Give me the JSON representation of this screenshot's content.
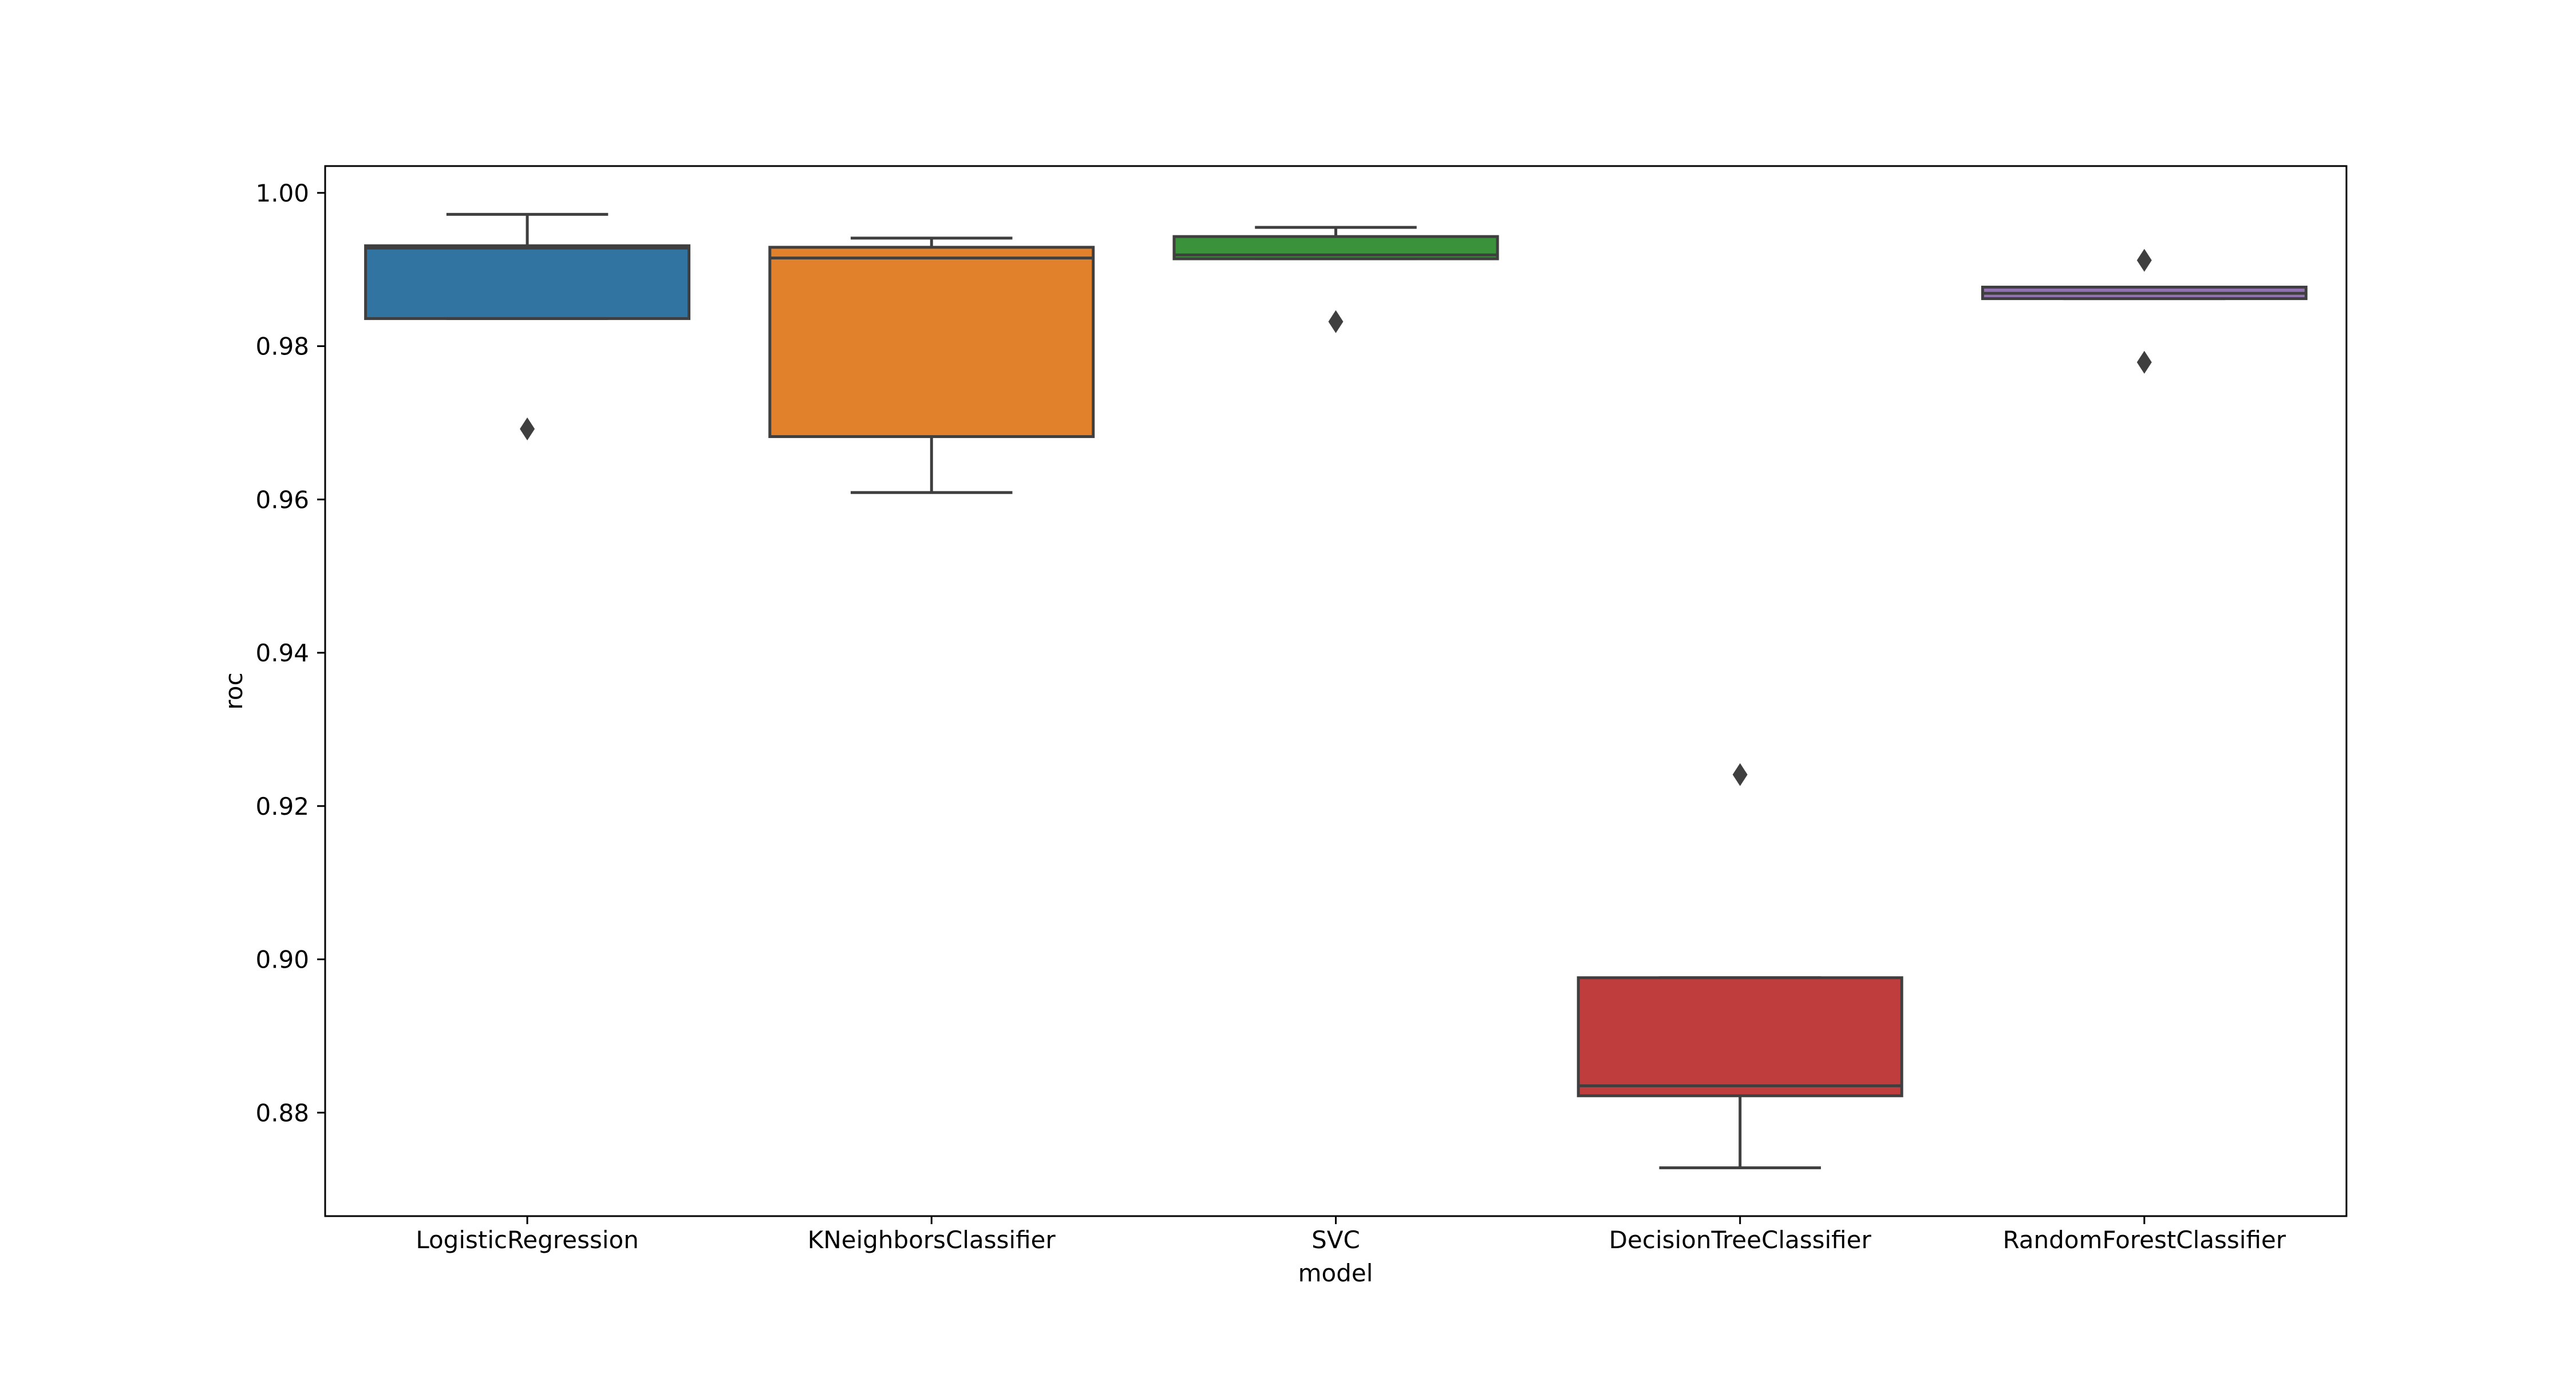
{
  "chart_data": {
    "type": "box",
    "xlabel": "model",
    "ylabel": "roc",
    "ylim": [
      0.8665,
      1.0035
    ],
    "yticks": [
      0.88,
      0.9,
      0.92,
      0.94,
      0.96,
      0.98,
      1.0
    ],
    "ytick_labels": [
      "0.88",
      "0.90",
      "0.92",
      "0.94",
      "0.96",
      "0.98",
      "1.00"
    ],
    "grid": false,
    "legend": "none",
    "categories": [
      "LogisticRegression",
      "KNeighborsClassifier",
      "SVC",
      "DecisionTreeClassifier",
      "RandomForestClassifier"
    ],
    "boxes": [
      {
        "category": "LogisticRegression",
        "color": "#3274a1",
        "whisker_low": 0.9836,
        "q1": 0.9836,
        "median": 0.9928,
        "q3": 0.9931,
        "whisker_high": 0.9972,
        "outliers": [
          0.9692
        ]
      },
      {
        "category": "KNeighborsClassifier",
        "color": "#e1812c",
        "whisker_low": 0.9609,
        "q1": 0.9682,
        "median": 0.9915,
        "q3": 0.9929,
        "whisker_high": 0.9941,
        "outliers": []
      },
      {
        "category": "SVC",
        "color": "#3a923a",
        "whisker_low": 0.9914,
        "q1": 0.9914,
        "median": 0.9919,
        "q3": 0.9943,
        "whisker_high": 0.9955,
        "outliers": [
          0.9832
        ]
      },
      {
        "category": "DecisionTreeClassifier",
        "color": "#c03d3e",
        "whisker_low": 0.8728,
        "q1": 0.8822,
        "median": 0.8835,
        "q3": 0.8976,
        "whisker_high": 0.8976,
        "outliers": [
          0.9241
        ]
      },
      {
        "category": "RandomForestClassifier",
        "color": "#9372b2",
        "whisker_low": 0.9862,
        "q1": 0.9862,
        "median": 0.9869,
        "q3": 0.9877,
        "whisker_high": 0.9877,
        "outliers": [
          0.9912,
          0.9779
        ]
      }
    ]
  }
}
